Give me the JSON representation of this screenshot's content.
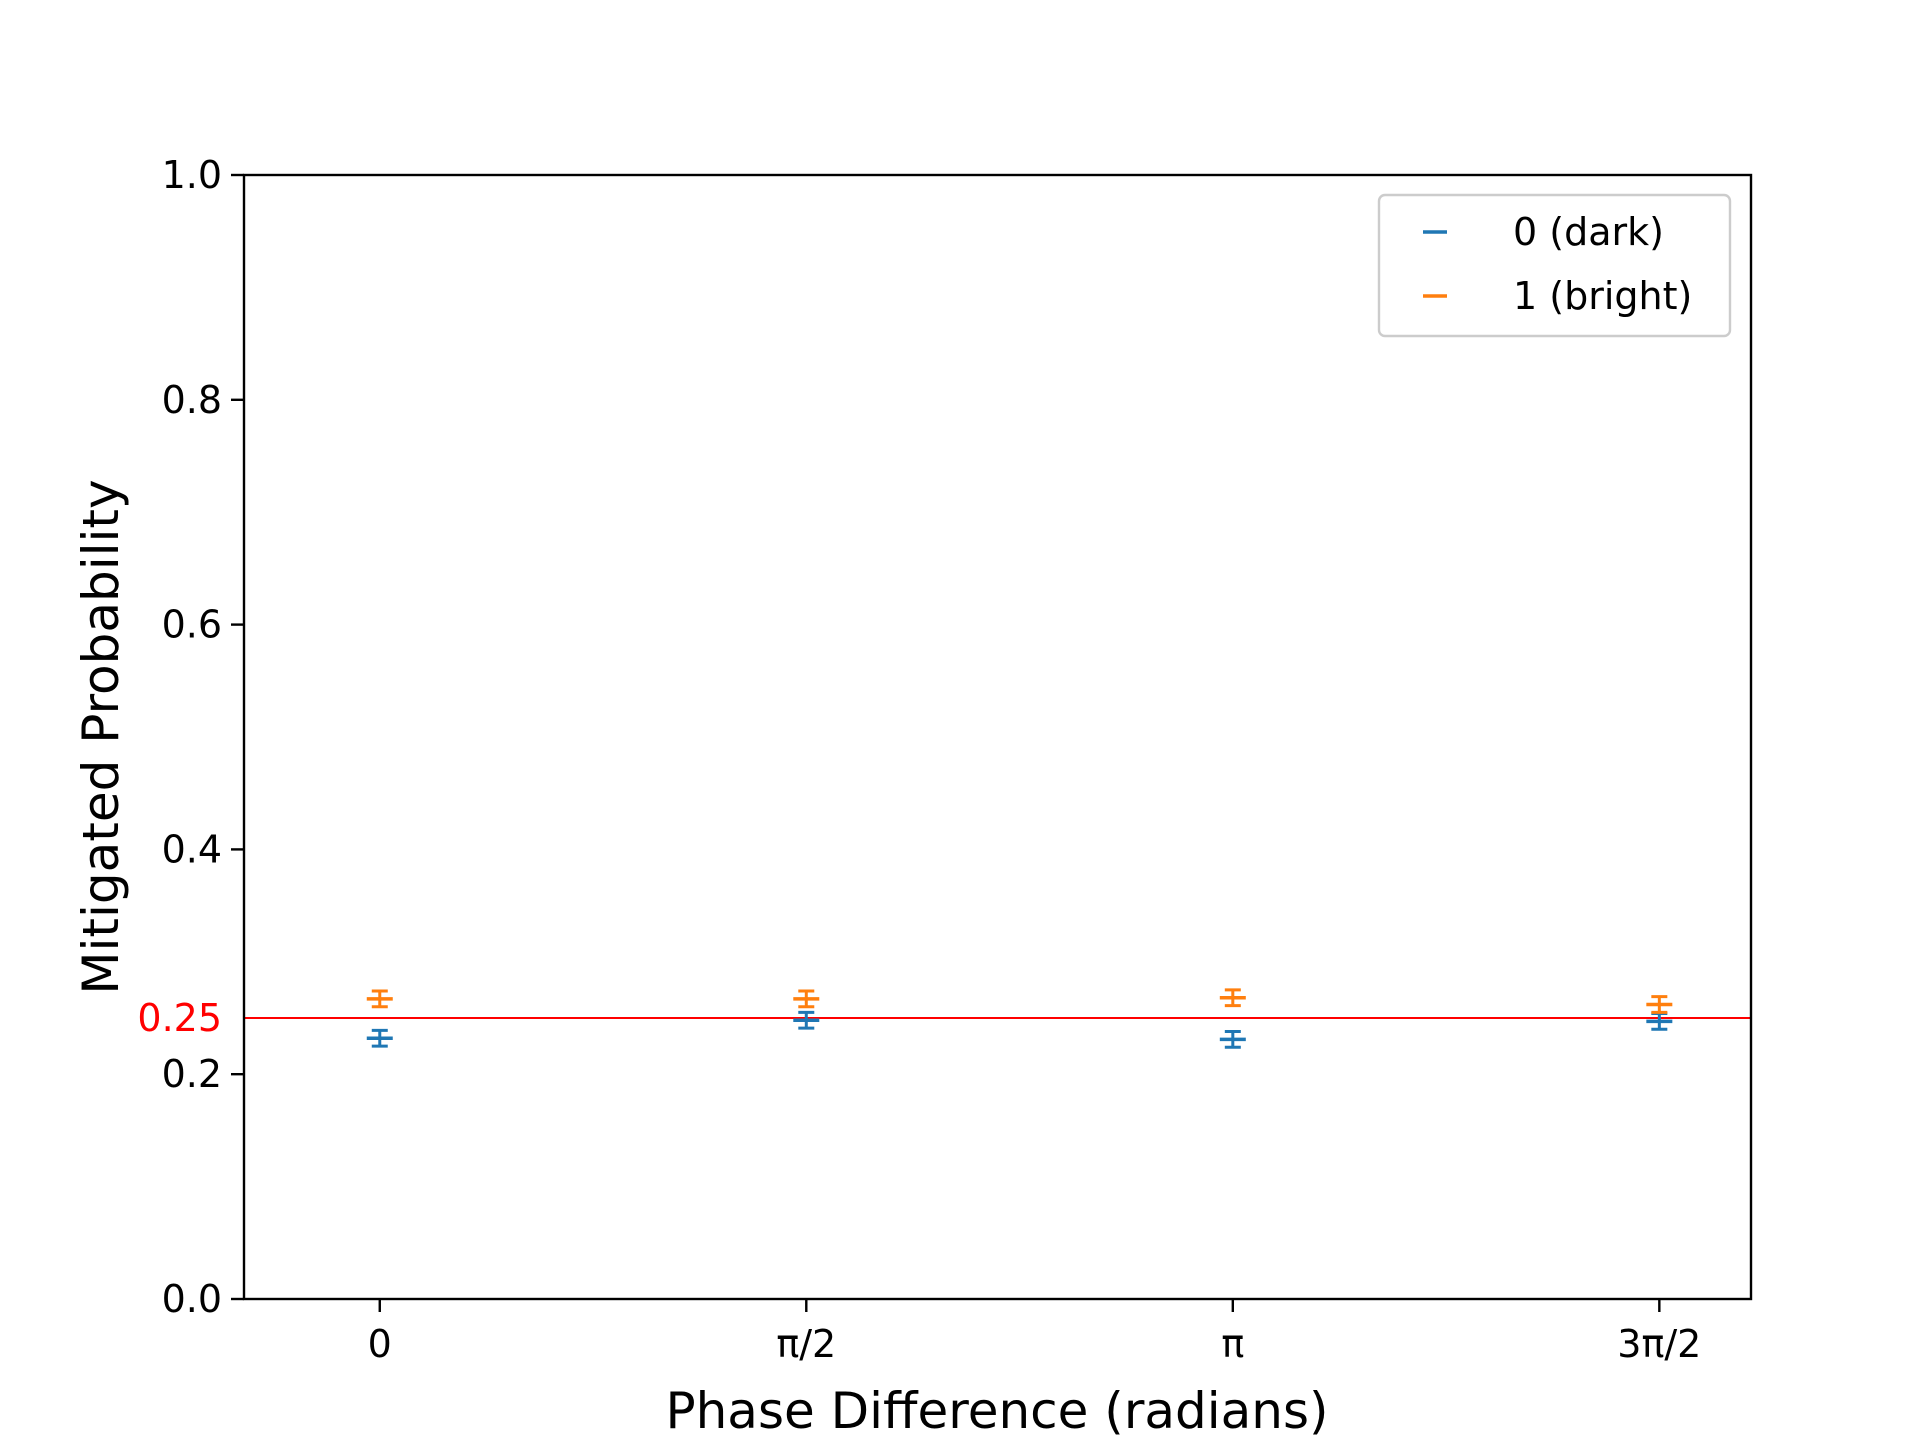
{
  "chart_data": {
    "type": "scatter",
    "xlabel": "Phase Difference (radians)",
    "ylabel": "Mitigated Probability",
    "x_ticks": [
      "0",
      "π/2",
      "π",
      "3π/2"
    ],
    "x_values_radians": [
      0,
      1.5708,
      3.1416,
      4.7124
    ],
    "ylim": [
      0.0,
      1.0
    ],
    "y_ticks": [
      "0.0",
      "0.2",
      "0.4",
      "0.6",
      "0.8",
      "1.0"
    ],
    "grid": false,
    "legend_position": "top-right",
    "reference_line": {
      "value": 0.25,
      "label": "0.25",
      "color": "#ff0000"
    },
    "series": [
      {
        "name": "0 (dark)",
        "color": "#1f77b4",
        "values": [
          0.232,
          0.248,
          0.231,
          0.247
        ],
        "errors": [
          0.007,
          0.007,
          0.007,
          0.007
        ]
      },
      {
        "name": "1 (bright)",
        "color": "#ff7f0e",
        "values": [
          0.267,
          0.267,
          0.268,
          0.262
        ],
        "errors": [
          0.007,
          0.007,
          0.007,
          0.007
        ]
      }
    ]
  }
}
